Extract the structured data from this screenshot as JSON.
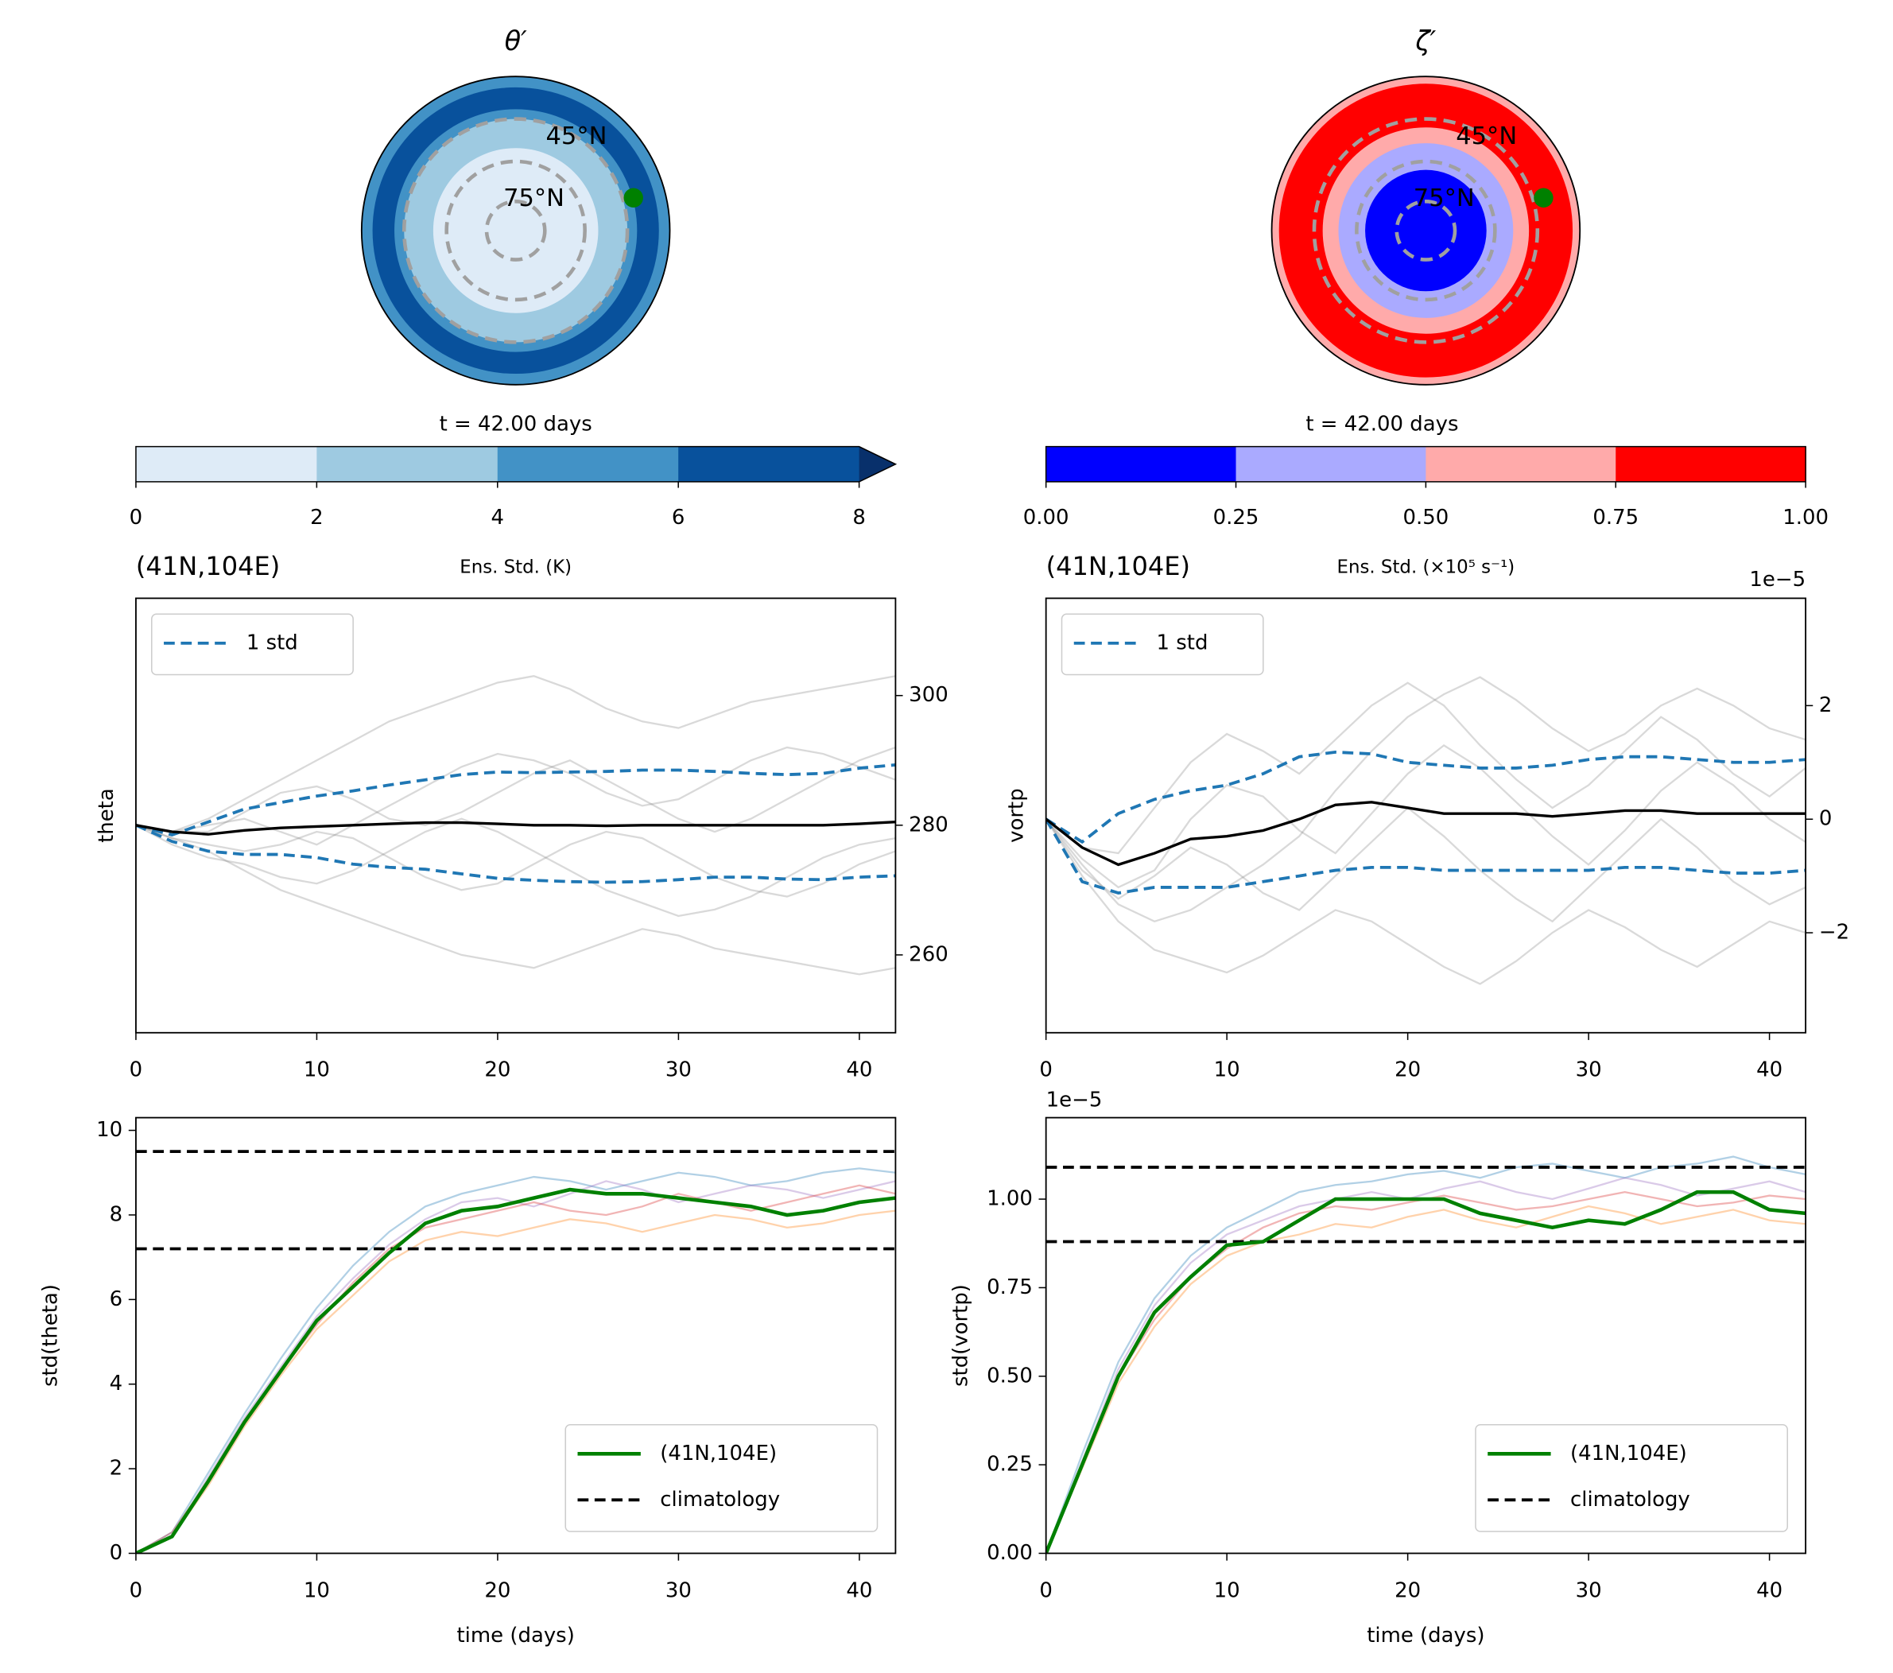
{
  "chart_data": [
    {
      "type": "polar",
      "title": "θ′",
      "lat_labels": [
        "45°N",
        "75°N"
      ],
      "colorbar": {
        "title": "t = 42.00 days",
        "label": "Ens. Std. (K)",
        "lim": [
          0,
          8
        ],
        "ticks": [
          0,
          2,
          4,
          6,
          8
        ],
        "colors": [
          "#deebf7",
          "#9ecae1",
          "#4292c6",
          "#08519c"
        ],
        "extend_color": "#08306b"
      }
    },
    {
      "type": "polar",
      "title": "ζ′",
      "lat_labels": [
        "45°N",
        "75°N"
      ],
      "colorbar": {
        "title": "t = 42.00 days",
        "label": "Ens. Std. (×10⁵ s⁻¹)",
        "lim": [
          0,
          1
        ],
        "ticks": [
          {
            "value": 0,
            "label": "0.00"
          },
          {
            "value": 0.25,
            "label": "0.25"
          },
          {
            "value": 0.5,
            "label": "0.50"
          },
          {
            "value": 0.75,
            "label": "0.75"
          },
          {
            "value": 1,
            "label": "1.00"
          }
        ],
        "colors": [
          "#0000ff",
          "#aaaaff",
          "#ffaaaa",
          "#ff0000"
        ]
      }
    },
    {
      "type": "line",
      "title": "(41N,104E)",
      "ylabel": "theta",
      "yaxis_side": "right",
      "legend": "upper left",
      "xlim": [
        0,
        42
      ],
      "xticks": [
        0,
        10,
        20,
        30,
        40
      ],
      "ylim": [
        248,
        315
      ],
      "yticks": [
        260,
        280,
        300
      ],
      "x": [
        0,
        2,
        4,
        6,
        8,
        10,
        12,
        14,
        16,
        18,
        20,
        22,
        24,
        26,
        28,
        30,
        32,
        34,
        36,
        38,
        40,
        42
      ],
      "ensemble": {
        "color": "#808080",
        "values": [
          [
            280,
            279,
            281,
            284,
            287,
            290,
            293,
            296,
            298,
            300,
            302,
            303,
            301,
            298,
            296,
            295,
            297,
            299,
            300,
            301,
            302,
            303
          ],
          [
            280,
            278,
            276,
            273,
            270,
            268,
            266,
            264,
            262,
            260,
            259,
            258,
            260,
            262,
            264,
            263,
            261,
            260,
            259,
            258,
            257,
            258
          ],
          [
            280,
            279,
            279,
            282,
            285,
            286,
            284,
            281,
            280,
            282,
            285,
            288,
            290,
            287,
            284,
            281,
            279,
            281,
            284,
            287,
            290,
            292
          ],
          [
            280,
            278,
            277,
            276,
            277,
            279,
            278,
            275,
            272,
            270,
            271,
            274,
            277,
            279,
            278,
            275,
            272,
            270,
            269,
            271,
            274,
            276
          ],
          [
            280,
            279,
            280,
            281,
            279,
            277,
            280,
            283,
            286,
            289,
            291,
            290,
            288,
            285,
            283,
            284,
            287,
            290,
            292,
            291,
            289,
            287
          ],
          [
            280,
            277,
            275,
            274,
            272,
            271,
            273,
            276,
            279,
            281,
            279,
            276,
            273,
            270,
            268,
            266,
            267,
            269,
            272,
            275,
            277,
            278
          ]
        ]
      },
      "mean": {
        "color": "#000000",
        "values": [
          280,
          279,
          278.6,
          279.2,
          279.6,
          279.8,
          280,
          280.2,
          280.4,
          280.4,
          280.2,
          280,
          280,
          279.9,
          280,
          280,
          280,
          280,
          280,
          280,
          280.2,
          280.5
        ]
      },
      "band": {
        "name": "1 std",
        "color": "#1f77b4",
        "upper": [
          280,
          278.5,
          280.5,
          282.5,
          283.5,
          284.5,
          285.3,
          286.2,
          287,
          287.8,
          288.2,
          288.1,
          288.2,
          288.3,
          288.5,
          288.5,
          288.3,
          288,
          287.8,
          288,
          288.8,
          289.3
        ],
        "lower": [
          280,
          277.5,
          276,
          275.5,
          275.5,
          275,
          274,
          273.5,
          273.2,
          272.5,
          271.8,
          271.5,
          271.3,
          271.2,
          271.3,
          271.6,
          272,
          272,
          271.7,
          271.6,
          272,
          272.2
        ]
      }
    },
    {
      "type": "line",
      "title": "(41N,104E)",
      "ylabel": "vortp",
      "yaxis_side": "right",
      "legend": "upper left",
      "offset_text": "1e−5",
      "xlim": [
        0,
        42
      ],
      "xticks": [
        0,
        10,
        20,
        30,
        40
      ],
      "ylim": [
        -3.76,
        3.89
      ],
      "yticks": [
        {
          "value": -2,
          "label": "−2"
        },
        0,
        2
      ],
      "x": [
        0,
        2,
        4,
        6,
        8,
        10,
        12,
        14,
        16,
        18,
        20,
        22,
        24,
        26,
        28,
        30,
        32,
        34,
        36,
        38,
        40,
        42
      ],
      "ensemble": {
        "color": "#808080",
        "values": [
          [
            0,
            -0.8,
            -1.5,
            -1.8,
            -1.6,
            -1.2,
            -0.8,
            -0.3,
            0.5,
            1.2,
            1.8,
            2.2,
            2.5,
            2.1,
            1.6,
            1.2,
            1.5,
            2.0,
            2.3,
            2.0,
            1.6,
            1.4
          ],
          [
            0,
            -1.0,
            -1.8,
            -2.3,
            -2.5,
            -2.7,
            -2.4,
            -2.0,
            -1.6,
            -1.8,
            -2.2,
            -2.6,
            -2.9,
            -2.5,
            -2.0,
            -1.6,
            -1.9,
            -2.3,
            -2.6,
            -2.2,
            -1.8,
            -2.0
          ],
          [
            0,
            -0.5,
            -0.6,
            0.2,
            1.0,
            1.5,
            1.2,
            0.8,
            1.4,
            2.0,
            2.4,
            2.0,
            1.3,
            0.7,
            0.2,
            0.6,
            1.2,
            1.8,
            1.4,
            0.8,
            0.4,
            0.9
          ],
          [
            0,
            -0.9,
            -1.4,
            -1.0,
            -0.5,
            -0.8,
            -1.3,
            -1.6,
            -1.0,
            -0.4,
            0.2,
            -0.3,
            -0.9,
            -1.4,
            -1.8,
            -1.2,
            -0.6,
            0.0,
            -0.5,
            -1.1,
            -1.5,
            -1.2
          ],
          [
            0,
            -0.7,
            -1.2,
            -0.9,
            0.0,
            0.6,
            0.4,
            -0.2,
            -0.6,
            0.1,
            0.8,
            1.3,
            0.9,
            0.3,
            -0.3,
            -0.8,
            -0.2,
            0.5,
            1.0,
            0.6,
            0.0,
            -0.4
          ]
        ]
      },
      "mean": {
        "color": "#000000",
        "values": [
          0,
          -0.5,
          -0.8,
          -0.6,
          -0.35,
          -0.3,
          -0.2,
          0,
          0.25,
          0.3,
          0.2,
          0.1,
          0.1,
          0.1,
          0.05,
          0.1,
          0.15,
          0.15,
          0.1,
          0.1,
          0.1,
          0.1
        ]
      },
      "band": {
        "name": "1 std",
        "color": "#1f77b4",
        "upper": [
          0,
          -0.4,
          0.1,
          0.35,
          0.5,
          0.6,
          0.8,
          1.1,
          1.18,
          1.15,
          1.0,
          0.95,
          0.9,
          0.9,
          0.95,
          1.05,
          1.1,
          1.1,
          1.05,
          1.0,
          1.0,
          1.05
        ],
        "lower": [
          0,
          -1.1,
          -1.3,
          -1.2,
          -1.2,
          -1.2,
          -1.1,
          -1.0,
          -0.9,
          -0.85,
          -0.85,
          -0.9,
          -0.9,
          -0.9,
          -0.9,
          -0.9,
          -0.85,
          -0.85,
          -0.9,
          -0.95,
          -0.95,
          -0.9
        ]
      }
    },
    {
      "type": "line",
      "ylabel": "std(theta)",
      "xlabel": "time (days)",
      "yaxis_side": "left",
      "legend": "lower right",
      "xlim": [
        0,
        42
      ],
      "xticks": [
        0,
        10,
        20,
        30,
        40
      ],
      "ylim": [
        0,
        10.3
      ],
      "yticks": [
        0,
        2,
        4,
        6,
        8,
        10
      ],
      "x": [
        0,
        2,
        4,
        6,
        8,
        10,
        12,
        14,
        16,
        18,
        20,
        22,
        24,
        26,
        28,
        30,
        32,
        34,
        36,
        38,
        40,
        42
      ],
      "ensemble": {
        "colors": [
          "#1f77b4",
          "#ff7f0e",
          "#9467bd",
          "#d62728"
        ],
        "values": [
          [
            0,
            0.5,
            1.9,
            3.3,
            4.6,
            5.8,
            6.8,
            7.6,
            8.2,
            8.5,
            8.7,
            8.9,
            8.8,
            8.6,
            8.8,
            9.0,
            8.9,
            8.7,
            8.8,
            9.0,
            9.1,
            9.0
          ],
          [
            0,
            0.4,
            1.6,
            3.0,
            4.2,
            5.3,
            6.1,
            6.9,
            7.4,
            7.6,
            7.5,
            7.7,
            7.9,
            7.8,
            7.6,
            7.8,
            8.0,
            7.9,
            7.7,
            7.8,
            8.0,
            8.1
          ],
          [
            0,
            0.4,
            1.8,
            3.2,
            4.4,
            5.6,
            6.5,
            7.3,
            7.9,
            8.3,
            8.4,
            8.2,
            8.5,
            8.8,
            8.6,
            8.3,
            8.5,
            8.7,
            8.6,
            8.4,
            8.6,
            8.8
          ],
          [
            0,
            0.5,
            1.7,
            3.1,
            4.3,
            5.4,
            6.4,
            7.2,
            7.7,
            7.9,
            8.1,
            8.3,
            8.1,
            8.0,
            8.2,
            8.5,
            8.3,
            8.1,
            8.3,
            8.5,
            8.7,
            8.5
          ]
        ]
      },
      "series": [
        {
          "name": "(41N,104E)",
          "color": "#008000",
          "values": [
            0,
            0.4,
            1.7,
            3.1,
            4.3,
            5.5,
            6.3,
            7.1,
            7.8,
            8.1,
            8.2,
            8.4,
            8.6,
            8.5,
            8.5,
            8.4,
            8.3,
            8.2,
            8.0,
            8.1,
            8.3,
            8.4
          ]
        }
      ],
      "hlines": {
        "name": "climatology",
        "color": "#000000",
        "values": [
          9.5,
          7.2
        ]
      }
    },
    {
      "type": "line",
      "ylabel": "std(vortp)",
      "xlabel": "time (days)",
      "yaxis_side": "left",
      "legend": "lower right",
      "offset_text": "1e−5",
      "xlim": [
        0,
        42
      ],
      "xticks": [
        0,
        10,
        20,
        30,
        40
      ],
      "ylim": [
        0,
        1.23
      ],
      "yticks": [
        {
          "value": 0,
          "label": "0.00"
        },
        {
          "value": 0.25,
          "label": "0.25"
        },
        {
          "value": 0.5,
          "label": "0.50"
        },
        {
          "value": 0.75,
          "label": "0.75"
        },
        {
          "value": 1,
          "label": "1.00"
        }
      ],
      "x": [
        0,
        2,
        4,
        6,
        8,
        10,
        12,
        14,
        16,
        18,
        20,
        22,
        24,
        26,
        28,
        30,
        32,
        34,
        36,
        38,
        40,
        42
      ],
      "ensemble": {
        "colors": [
          "#1f77b4",
          "#ff7f0e",
          "#9467bd",
          "#d62728"
        ],
        "values": [
          [
            0,
            0.28,
            0.54,
            0.72,
            0.84,
            0.92,
            0.97,
            1.02,
            1.04,
            1.05,
            1.07,
            1.08,
            1.06,
            1.09,
            1.1,
            1.08,
            1.06,
            1.09,
            1.1,
            1.12,
            1.09,
            1.07
          ],
          [
            0,
            0.24,
            0.48,
            0.64,
            0.76,
            0.84,
            0.88,
            0.9,
            0.93,
            0.92,
            0.95,
            0.97,
            0.94,
            0.92,
            0.95,
            0.98,
            0.96,
            0.93,
            0.95,
            0.97,
            0.94,
            0.93
          ],
          [
            0,
            0.26,
            0.52,
            0.7,
            0.82,
            0.9,
            0.94,
            0.98,
            1.0,
            1.02,
            1.0,
            1.03,
            1.05,
            1.02,
            1.0,
            1.03,
            1.06,
            1.04,
            1.01,
            1.03,
            1.05,
            1.02
          ],
          [
            0,
            0.25,
            0.5,
            0.66,
            0.78,
            0.86,
            0.92,
            0.96,
            0.98,
            0.97,
            0.99,
            1.01,
            0.99,
            0.97,
            0.98,
            1.0,
            1.02,
            1.0,
            0.98,
            0.99,
            1.01,
            1.0
          ]
        ]
      },
      "series": [
        {
          "name": "(41N,104E)",
          "color": "#008000",
          "values": [
            0,
            0.25,
            0.5,
            0.68,
            0.78,
            0.87,
            0.88,
            0.94,
            1.0,
            1.0,
            1.0,
            1.0,
            0.96,
            0.94,
            0.92,
            0.94,
            0.93,
            0.97,
            1.02,
            1.02,
            0.97,
            0.96
          ]
        }
      ],
      "hlines": {
        "name": "climatology",
        "color": "#000000",
        "values": [
          1.09,
          0.88
        ]
      }
    }
  ]
}
